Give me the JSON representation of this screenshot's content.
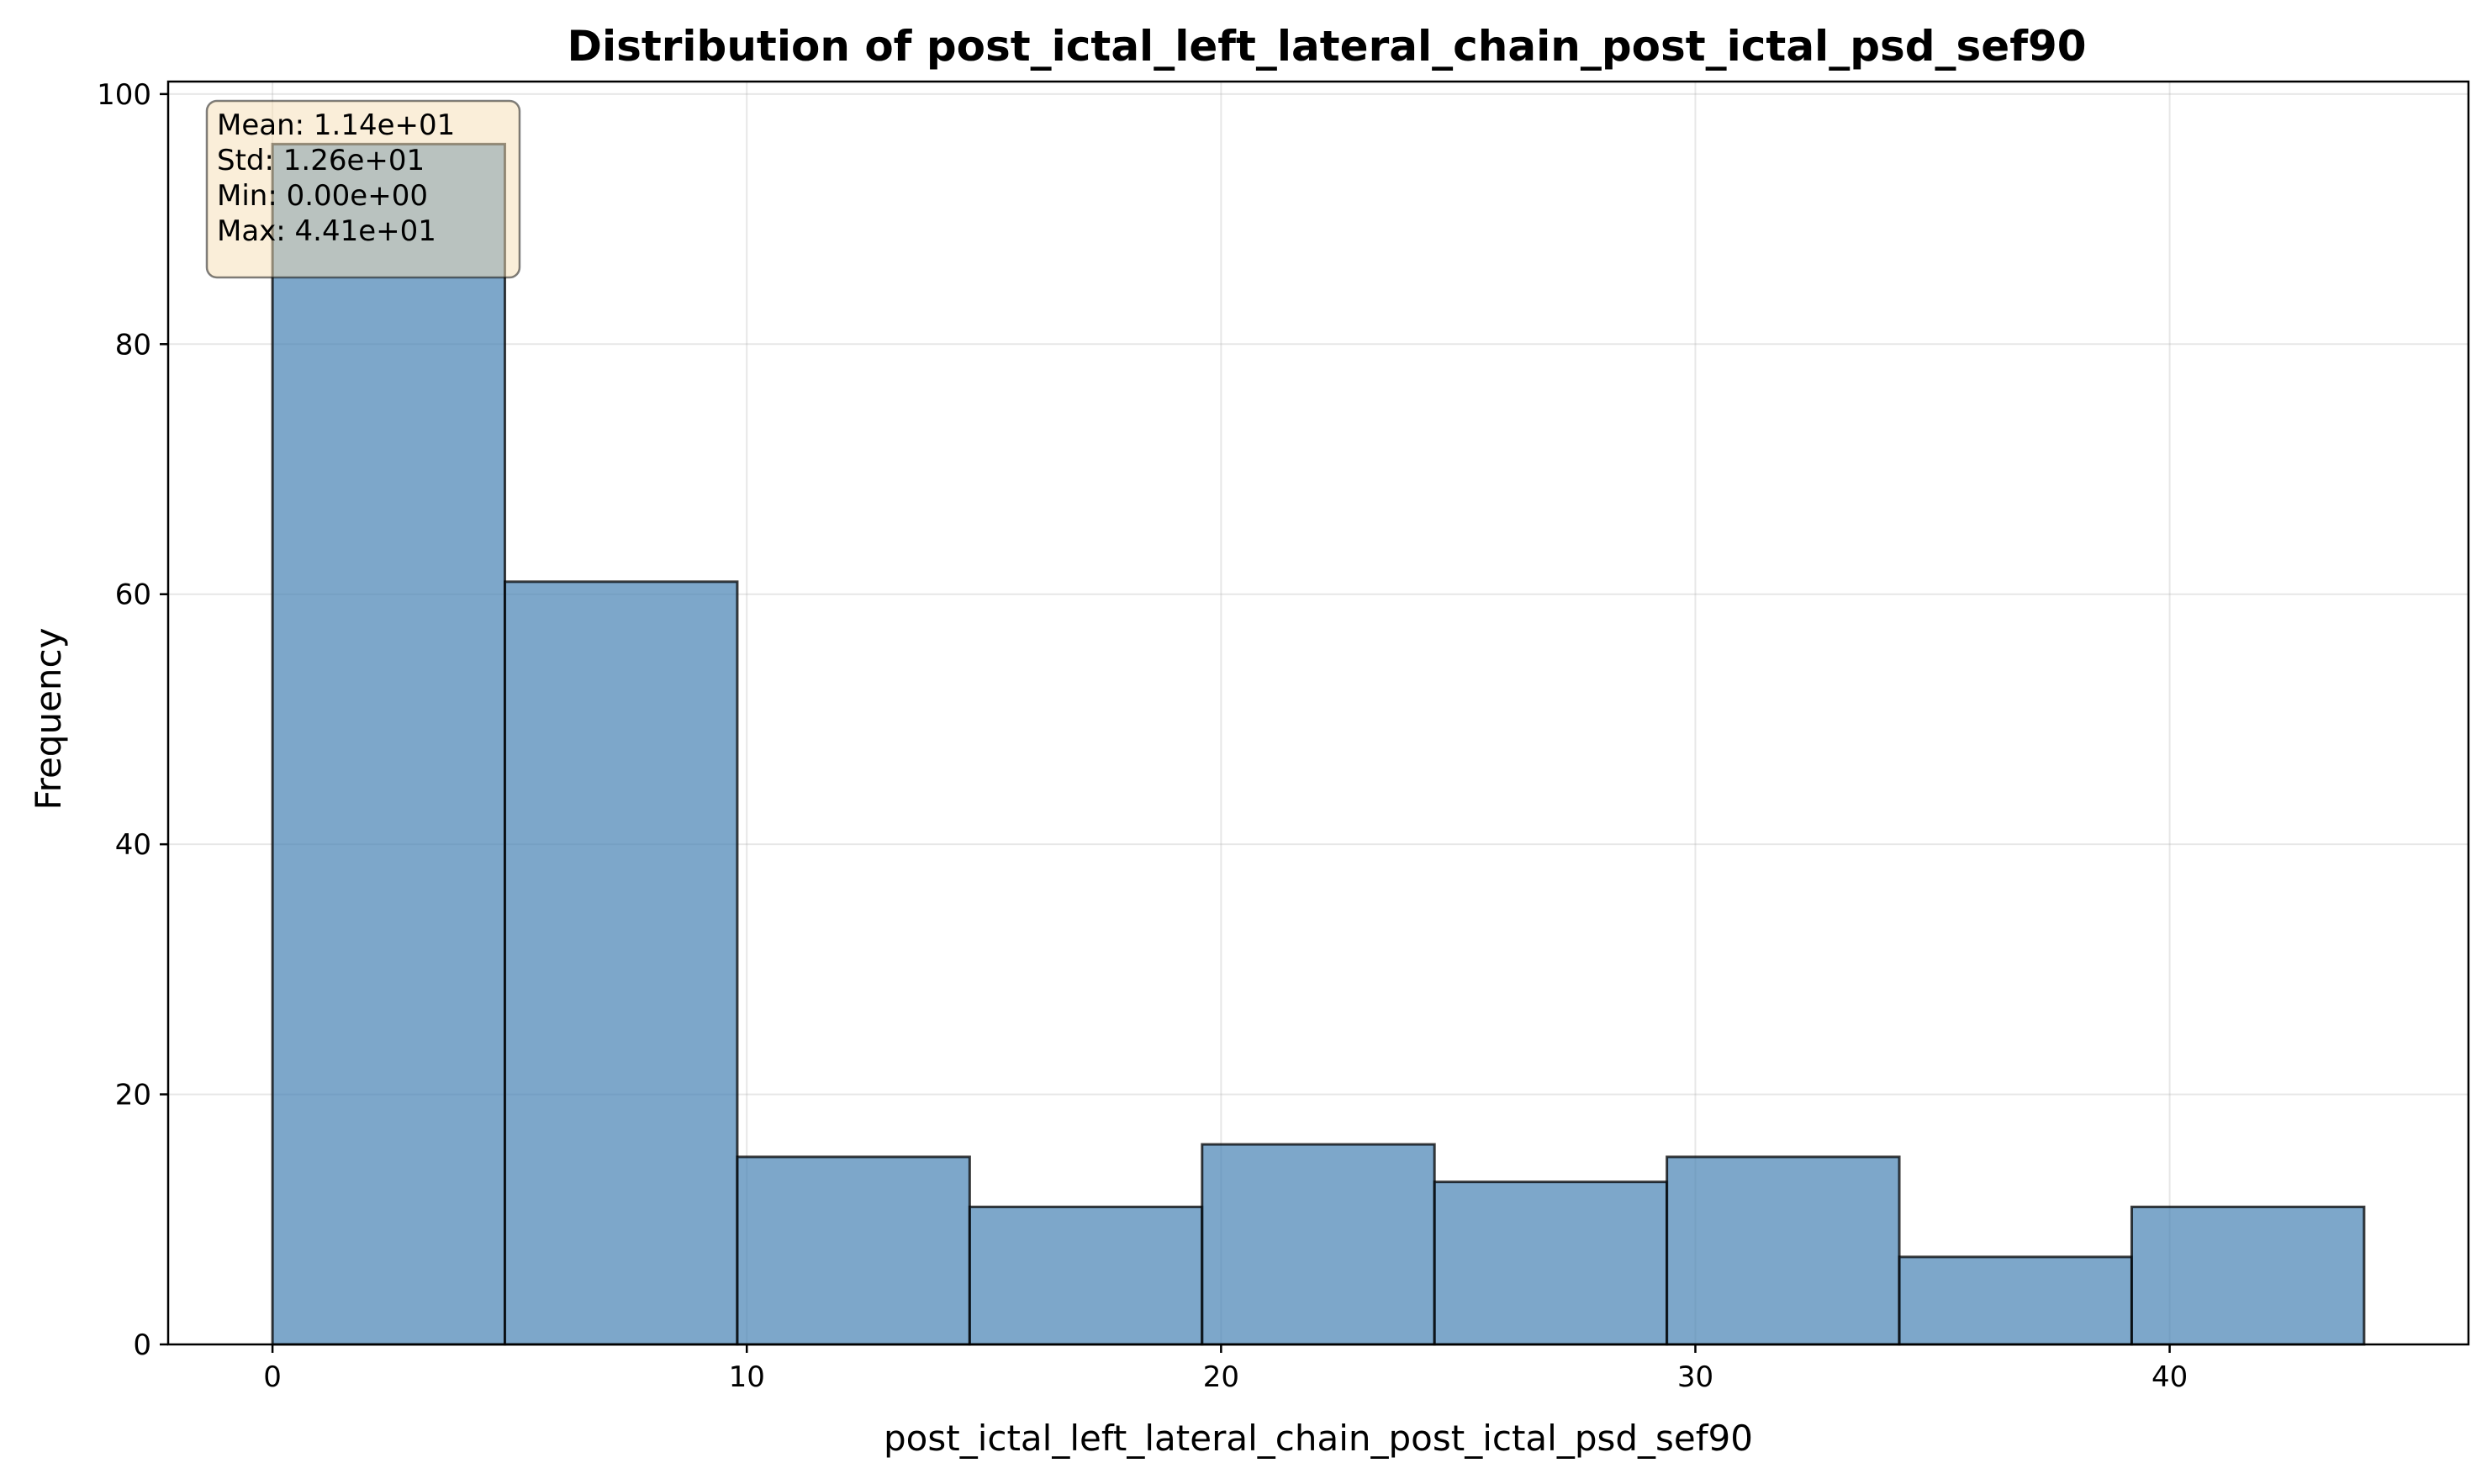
{
  "chart_data": {
    "type": "bar",
    "title": "Distribution of post_ictal_left_lateral_chain_post_ictal_psd_sef90",
    "xlabel": "post_ictal_left_lateral_chain_post_ictal_psd_sef90",
    "ylabel": "Frequency",
    "bin_edges": [
      0,
      4.9,
      9.8,
      14.7,
      19.6,
      24.5,
      29.4,
      34.3,
      39.2,
      44.1
    ],
    "values": [
      96,
      61,
      15,
      11,
      16,
      13,
      15,
      7,
      11
    ],
    "xlim": [
      -2.2,
      46.3
    ],
    "ylim": [
      0,
      101
    ],
    "xticks": [
      0,
      10,
      20,
      30,
      40
    ],
    "yticks": [
      0,
      20,
      40,
      60,
      80,
      100
    ],
    "grid": true,
    "bar_color": "#4682b4",
    "stats_box": {
      "placement": "top-left",
      "lines": [
        "Mean: 1.14e+01",
        "Std: 1.26e+01",
        "Min: 0.00e+00",
        "Max: 4.41e+01"
      ]
    }
  }
}
